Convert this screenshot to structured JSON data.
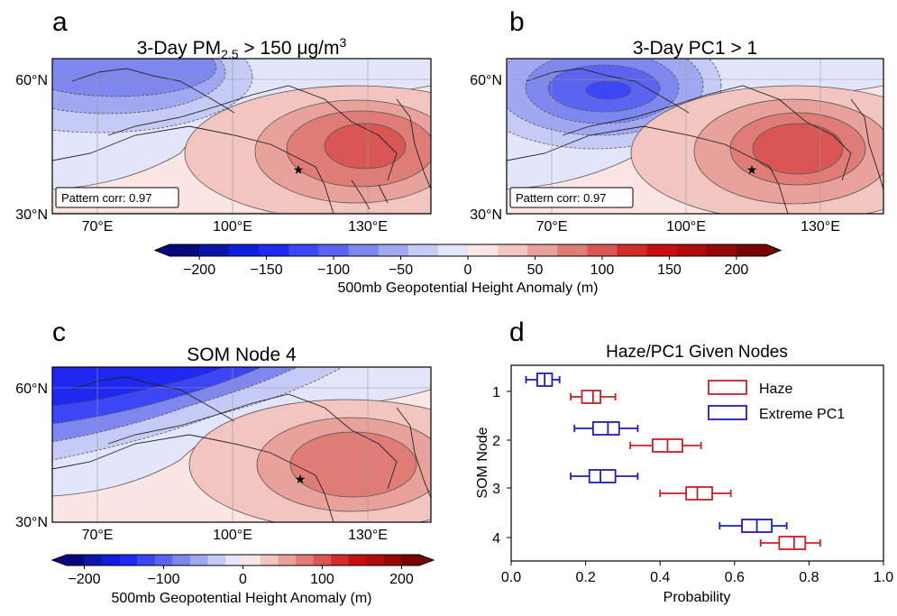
{
  "panels": {
    "a": {
      "letter": "a",
      "title_prefix": "3-Day PM",
      "title_sub": "2.5",
      "title_suffix": " > 150 μg/m",
      "title_sup": "3",
      "pattern_corr": "Pattern corr: 0.97"
    },
    "b": {
      "letter": "b",
      "title": "3-Day PC1 > 1",
      "pattern_corr": "Pattern corr: 0.97"
    },
    "c": {
      "letter": "c",
      "title": "SOM Node 4"
    },
    "d": {
      "letter": "d"
    }
  },
  "map_axes": {
    "lat_labels": [
      "60°N",
      "30°N"
    ],
    "lon_labels": [
      "70°E",
      "100°E",
      "130°E"
    ]
  },
  "colorbar": {
    "label": "500mb Geopotential Height Anomaly (m)",
    "tick_labels": [
      "−200",
      "−150",
      "−100",
      "−50",
      "0",
      "50",
      "100",
      "150",
      "200"
    ],
    "tick_labels_c": [
      "−200",
      "−100",
      "0",
      "100",
      "200"
    ],
    "colors": [
      "#08087a",
      "#0d14a8",
      "#0f1ed8",
      "#1e28f0",
      "#3c46f5",
      "#5a64f0",
      "#7d87ee",
      "#a0a8f2",
      "#c6cbf6",
      "#e3e6fb",
      "#fbe6e4",
      "#f3c5c0",
      "#e8a19b",
      "#e07c76",
      "#d95654",
      "#d02c2c",
      "#c80e0e",
      "#b20b0b",
      "#950707",
      "#780303"
    ]
  },
  "chart_data": {
    "type": "boxplot",
    "title": "Haze/PC1 Given Nodes",
    "xlabel": "Probability",
    "ylabel": "SOM Node",
    "xlim": [
      0.0,
      1.0
    ],
    "x_ticks": [
      "0.0",
      "0.2",
      "0.4",
      "0.6",
      "0.8",
      "1.0"
    ],
    "categories": [
      "1",
      "2",
      "3",
      "4"
    ],
    "legend_position": "top-right",
    "series": [
      {
        "name": "Haze",
        "color": "#c8202a",
        "boxes": [
          {
            "node": "1",
            "whislo": 0.16,
            "q1": 0.19,
            "med": 0.22,
            "q3": 0.24,
            "whishi": 0.28
          },
          {
            "node": "2",
            "whislo": 0.32,
            "q1": 0.38,
            "med": 0.42,
            "q3": 0.46,
            "whishi": 0.51
          },
          {
            "node": "3",
            "whislo": 0.4,
            "q1": 0.47,
            "med": 0.5,
            "q3": 0.54,
            "whishi": 0.59
          },
          {
            "node": "4",
            "whislo": 0.67,
            "q1": 0.72,
            "med": 0.76,
            "q3": 0.79,
            "whishi": 0.83
          }
        ]
      },
      {
        "name": "Extreme PC1",
        "color": "#1e1eb4",
        "boxes": [
          {
            "node": "1",
            "whislo": 0.04,
            "q1": 0.07,
            "med": 0.09,
            "q3": 0.11,
            "whishi": 0.13
          },
          {
            "node": "2",
            "whislo": 0.17,
            "q1": 0.22,
            "med": 0.26,
            "q3": 0.29,
            "whishi": 0.34
          },
          {
            "node": "3",
            "whislo": 0.16,
            "q1": 0.21,
            "med": 0.24,
            "q3": 0.28,
            "whishi": 0.34
          },
          {
            "node": "4",
            "whislo": 0.56,
            "q1": 0.62,
            "med": 0.66,
            "q3": 0.7,
            "whishi": 0.74
          }
        ]
      }
    ]
  }
}
